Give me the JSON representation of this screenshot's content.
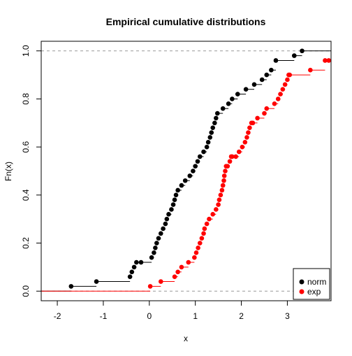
{
  "chart_data": {
    "type": "line",
    "title": "Empirical cumulative distributions",
    "xlabel": "x",
    "ylabel": "Fn(x)",
    "xlim": [
      -2.35,
      3.95
    ],
    "ylim": [
      -0.04,
      1.04
    ],
    "x_ticks": [
      -2,
      -1,
      0,
      1,
      2,
      3
    ],
    "y_ticks": [
      0.0,
      0.2,
      0.4,
      0.6,
      0.8,
      1.0
    ],
    "x_tick_labels": [
      "-2",
      "-1",
      "0",
      "1",
      "2",
      "3"
    ],
    "y_tick_labels": [
      "0.0",
      "0.2",
      "0.4",
      "0.6",
      "0.8",
      "1.0"
    ],
    "reference_lines": [
      0,
      1
    ],
    "legend_position": "bottom-right",
    "series": [
      {
        "name": "norm",
        "color": "#000000",
        "x": [
          -1.7,
          -1.15,
          -0.42,
          -0.38,
          -0.33,
          -0.28,
          -0.18,
          0.05,
          0.1,
          0.13,
          0.16,
          0.2,
          0.25,
          0.3,
          0.35,
          0.38,
          0.42,
          0.48,
          0.52,
          0.55,
          0.58,
          0.62,
          0.7,
          0.78,
          0.88,
          0.95,
          1.0,
          1.05,
          1.1,
          1.18,
          1.25,
          1.28,
          1.32,
          1.35,
          1.38,
          1.42,
          1.45,
          1.48,
          1.6,
          1.72,
          1.8,
          1.92,
          2.1,
          2.28,
          2.45,
          2.55,
          2.65,
          2.75,
          3.15,
          3.32
        ],
        "y": [
          0.02,
          0.04,
          0.06,
          0.08,
          0.1,
          0.12,
          0.12,
          0.14,
          0.16,
          0.18,
          0.2,
          0.22,
          0.24,
          0.26,
          0.28,
          0.3,
          0.32,
          0.34,
          0.36,
          0.38,
          0.4,
          0.42,
          0.44,
          0.46,
          0.48,
          0.5,
          0.52,
          0.54,
          0.56,
          0.58,
          0.6,
          0.62,
          0.64,
          0.66,
          0.68,
          0.7,
          0.72,
          0.74,
          0.76,
          0.78,
          0.8,
          0.82,
          0.84,
          0.86,
          0.88,
          0.9,
          0.92,
          0.96,
          0.98,
          1.0
        ]
      },
      {
        "name": "exp",
        "color": "#ff0000",
        "x": [
          0.02,
          0.25,
          0.55,
          0.62,
          0.7,
          0.85,
          0.98,
          1.02,
          1.06,
          1.1,
          1.14,
          1.18,
          1.2,
          1.25,
          1.3,
          1.38,
          1.45,
          1.5,
          1.52,
          1.55,
          1.58,
          1.6,
          1.62,
          1.63,
          1.65,
          1.67,
          1.7,
          1.75,
          1.78,
          1.8,
          1.88,
          1.95,
          2.02,
          2.08,
          2.12,
          2.15,
          2.18,
          2.22,
          2.25,
          2.35,
          2.5,
          2.55,
          2.72,
          2.8,
          2.85,
          2.9,
          2.95,
          3.0,
          3.03,
          3.05,
          3.5,
          3.82,
          3.9
        ],
        "y": [
          0.02,
          0.04,
          0.06,
          0.08,
          0.1,
          0.12,
          0.14,
          0.16,
          0.18,
          0.2,
          0.22,
          0.24,
          0.26,
          0.28,
          0.3,
          0.32,
          0.34,
          0.36,
          0.38,
          0.4,
          0.42,
          0.44,
          0.46,
          0.48,
          0.5,
          0.52,
          0.52,
          0.54,
          0.56,
          0.56,
          0.56,
          0.58,
          0.6,
          0.62,
          0.64,
          0.66,
          0.68,
          0.7,
          0.7,
          0.72,
          0.74,
          0.76,
          0.78,
          0.8,
          0.82,
          0.84,
          0.86,
          0.88,
          0.9,
          0.9,
          0.92,
          0.96,
          0.96
        ]
      }
    ]
  }
}
